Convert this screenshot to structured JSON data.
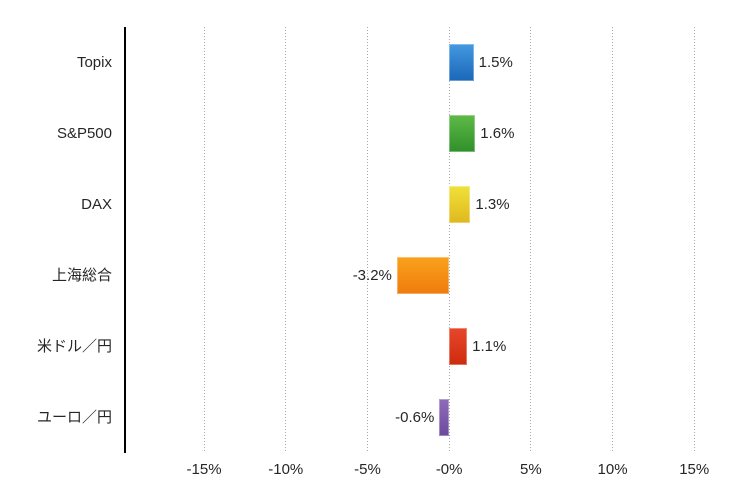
{
  "chart": {
    "background_color": "#ffffff",
    "text_color": "#262626",
    "grid_color": "#a8a8a8",
    "axis_color": "#000000"
  },
  "chart_data": {
    "type": "bar",
    "orientation": "horizontal",
    "title": "",
    "xlabel": "",
    "ylabel": "",
    "legend": "none",
    "grid": "dotted-vertical",
    "xlim": [
      -19.9,
      17.8
    ],
    "categories": [
      "Topix",
      "S&P500",
      "DAX",
      "上海総合",
      "米ドル／円",
      "ユーロ／円"
    ],
    "category_slugs": [
      "topix",
      "sp500",
      "dax",
      "shanghai-composite",
      "usd-jpy",
      "eur-jpy"
    ],
    "values": [
      1.5,
      1.6,
      1.3,
      -3.2,
      1.1,
      -0.6
    ],
    "value_labels": [
      "1.5%",
      "1.6%",
      "1.3%",
      "-3.2%",
      "1.1%",
      "-0.6%"
    ],
    "bar_gradients": [
      {
        "top": "#4499e0",
        "bottom": "#1a67b8"
      },
      {
        "top": "#5fba47",
        "bottom": "#2f8f2a"
      },
      {
        "top": "#f0e13a",
        "bottom": "#e0b81e"
      },
      {
        "top": "#f9a21c",
        "bottom": "#ef7b0d"
      },
      {
        "top": "#e8472b",
        "bottom": "#ce2a0e"
      },
      {
        "top": "#8e6cba",
        "bottom": "#6d4a9d"
      }
    ],
    "x_ticks": [
      {
        "value": -15,
        "label": "-15%"
      },
      {
        "value": -10,
        "label": "-10%"
      },
      {
        "value": -5,
        "label": "-5%"
      },
      {
        "value": 0,
        "label": "-0%"
      },
      {
        "value": 5,
        "label": "5%"
      },
      {
        "value": 10,
        "label": "10%"
      },
      {
        "value": 15,
        "label": "15%"
      }
    ]
  }
}
